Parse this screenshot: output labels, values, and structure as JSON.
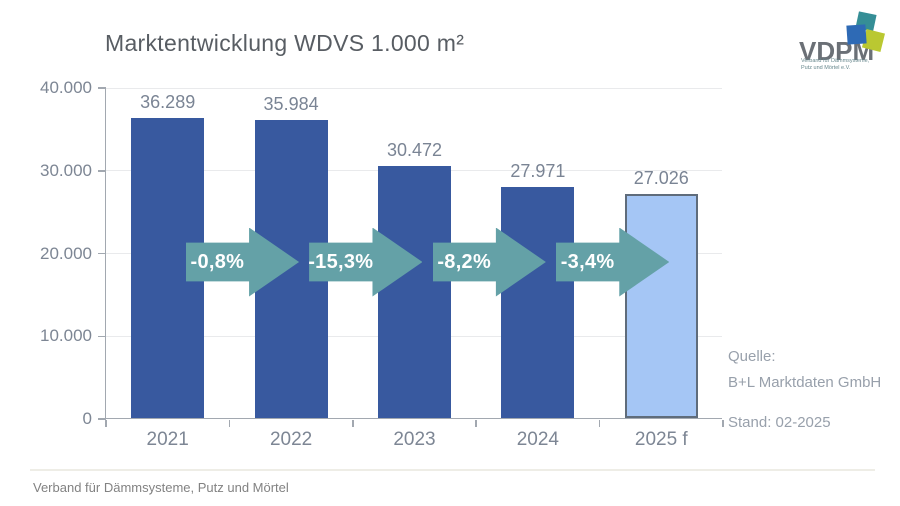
{
  "header": {
    "title": "Marktentwicklung WDVS 1.000 m²"
  },
  "logo": {
    "name": "VDPM",
    "tagline_line1": "Verband für Dämmsysteme,",
    "tagline_line2": "Putz und Mörtel e.V.",
    "square_colors": {
      "teal": "#358e96",
      "blue": "#2e6ab5",
      "green": "#bac831"
    }
  },
  "source": {
    "line1": "Quelle:",
    "line2": "B+L Marktdaten GmbH",
    "line3": "Stand: 02-2025"
  },
  "footer": {
    "text": "Verband für Dämmsysteme, Putz und Mörtel"
  },
  "colors": {
    "bar_blue": "#38599f",
    "forecast_fill": "#a5c6f5",
    "forecast_border": "#5f6c7b",
    "arrow_teal": "#64a1a7",
    "axis_gray": "#a2a8b0",
    "label_gray": "#7d8694"
  },
  "chart_data": {
    "type": "bar",
    "title": "Marktentwicklung WDVS 1.000 m²",
    "categories": [
      "2021",
      "2022",
      "2023",
      "2024",
      "2025 f"
    ],
    "values": [
      36289,
      35984,
      30472,
      27971,
      27026
    ],
    "value_labels": [
      "36.289",
      "35.984",
      "30.472",
      "27.971",
      "27.026"
    ],
    "xlabel": "",
    "ylabel": "",
    "ylim": [
      0,
      40000
    ],
    "ytick_step": 10000,
    "ytick_labels": [
      "0",
      "10.000",
      "20.000",
      "30.000",
      "40.000"
    ],
    "grid": true,
    "legend": "none",
    "bar_colors": [
      "#38599f",
      "#38599f",
      "#38599f",
      "#38599f",
      "#a5c6f5"
    ],
    "forecast_index": 4,
    "arrows": [
      {
        "from": "2021",
        "to": "2022",
        "label": "-0,8%"
      },
      {
        "from": "2022",
        "to": "2023",
        "label": "-15,3%"
      },
      {
        "from": "2023",
        "to": "2024",
        "label": "-8,2%"
      },
      {
        "from": "2024",
        "to": "2025 f",
        "label": "-3,4%"
      }
    ]
  }
}
